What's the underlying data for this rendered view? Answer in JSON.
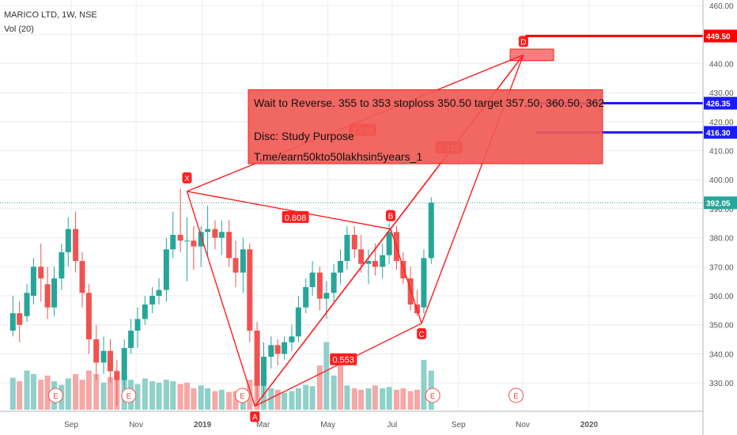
{
  "header": {
    "symbol": "MARICO LTD, 1W, NSE",
    "indicator": "Vol (20)"
  },
  "colors": {
    "up": "#26a69a",
    "down": "#ef5350",
    "vol_up": "#8fd0c9",
    "vol_down": "#f5a8a6",
    "pattern": "#ff1e1e",
    "text_box": "#f05a55",
    "level_red": "#ff0000",
    "level_blue": "#1a1aff",
    "last_price_dot": "#26a69a",
    "axis_text": "#555555",
    "grid": "#e9ecf2"
  },
  "annotation": {
    "line1": "Wait to Reverse. 355 to 353 stoploss 350.50 target 357.50, 360.50, 362",
    "line2": "Disc: Study Purpose",
    "line3": "T.me/earn50kto50lakhsin5years_1"
  },
  "chart_data": {
    "type": "candlestick",
    "title": "MARICO LTD, 1W, NSE",
    "y_axis": {
      "range": [
        321,
        463
      ],
      "ticks": [
        330,
        340,
        350,
        360,
        370,
        380,
        390,
        400,
        410,
        420,
        430,
        440,
        450,
        460
      ],
      "tick_labels": [
        "330.00",
        "340.00",
        "350.00",
        "360.00",
        "370.00",
        "380.00",
        "390.00",
        "400.00",
        "410.00",
        "420.00",
        "430.00",
        "440.00",
        "450.00",
        "460.00"
      ]
    },
    "x_axis": {
      "labels": [
        "Sep",
        "Nov",
        "2019",
        "Mar",
        "May",
        "Jul",
        "Sep",
        "Nov",
        "2020"
      ],
      "label_weeks": [
        0,
        8.8,
        17.8,
        26,
        34.8,
        43.5,
        52.5,
        61.2,
        70.2
      ]
    },
    "price_labels": [
      {
        "value": 449.5,
        "text": "449.50",
        "color": "#ff0000"
      },
      {
        "value": 426.35,
        "text": "426.35",
        "color": "#1a1aff"
      },
      {
        "value": 416.3,
        "text": "416.30",
        "color": "#1a1aff"
      },
      {
        "value": 392.05,
        "text": "392.05",
        "color": "#26a69a"
      }
    ],
    "candles": [
      {
        "w": -7.9,
        "o": 348,
        "h": 360,
        "l": 346,
        "c": 354
      },
      {
        "w": -7,
        "o": 354,
        "h": 358,
        "l": 344,
        "c": 350
      },
      {
        "w": -6,
        "o": 353,
        "h": 364,
        "l": 351,
        "c": 361
      },
      {
        "w": -5.1,
        "o": 360,
        "h": 373,
        "l": 357,
        "c": 370
      },
      {
        "w": -4.1,
        "o": 370,
        "h": 378,
        "l": 358,
        "c": 366
      },
      {
        "w": -3.2,
        "o": 364,
        "h": 370,
        "l": 352,
        "c": 356
      },
      {
        "w": -2.3,
        "o": 356,
        "h": 370,
        "l": 353,
        "c": 366
      },
      {
        "w": -1.3,
        "o": 366,
        "h": 378,
        "l": 362,
        "c": 375
      },
      {
        "w": -0.4,
        "o": 375,
        "h": 387,
        "l": 370,
        "c": 383
      },
      {
        "w": 0.6,
        "o": 383,
        "h": 389,
        "l": 368,
        "c": 372
      },
      {
        "w": 1.5,
        "o": 372,
        "h": 375,
        "l": 356,
        "c": 361
      },
      {
        "w": 2.4,
        "o": 361,
        "h": 364,
        "l": 340,
        "c": 345
      },
      {
        "w": 3.4,
        "o": 345,
        "h": 350,
        "l": 331,
        "c": 337
      },
      {
        "w": 4.4,
        "o": 337,
        "h": 346,
        "l": 333,
        "c": 341
      },
      {
        "w": 5.3,
        "o": 341,
        "h": 345,
        "l": 330,
        "c": 334
      },
      {
        "w": 6.2,
        "o": 334,
        "h": 338,
        "l": 322,
        "c": 331
      },
      {
        "w": 7.2,
        "o": 331,
        "h": 345,
        "l": 328,
        "c": 342
      },
      {
        "w": 8.1,
        "o": 342,
        "h": 352,
        "l": 340,
        "c": 348
      },
      {
        "w": 9,
        "o": 348,
        "h": 356,
        "l": 342,
        "c": 352
      },
      {
        "w": 10,
        "o": 352,
        "h": 360,
        "l": 350,
        "c": 357
      },
      {
        "w": 11,
        "o": 357,
        "h": 363,
        "l": 354,
        "c": 360
      },
      {
        "w": 11.9,
        "o": 360,
        "h": 366,
        "l": 357,
        "c": 362
      },
      {
        "w": 12.9,
        "o": 362,
        "h": 380,
        "l": 358,
        "c": 376
      },
      {
        "w": 13.8,
        "o": 376,
        "h": 389,
        "l": 373,
        "c": 381
      },
      {
        "w": 14.8,
        "o": 381,
        "h": 397,
        "l": 375,
        "c": 379
      },
      {
        "w": 15.7,
        "o": 379,
        "h": 387,
        "l": 365,
        "c": 379
      },
      {
        "w": 16.6,
        "o": 379,
        "h": 384,
        "l": 369,
        "c": 377
      },
      {
        "w": 17.6,
        "o": 377,
        "h": 384,
        "l": 370,
        "c": 382
      },
      {
        "w": 18.5,
        "o": 382,
        "h": 391,
        "l": 374,
        "c": 383
      },
      {
        "w": 19.5,
        "o": 383,
        "h": 386,
        "l": 376,
        "c": 380
      },
      {
        "w": 20.4,
        "o": 380,
        "h": 386,
        "l": 374,
        "c": 382
      },
      {
        "w": 21.4,
        "o": 382,
        "h": 386,
        "l": 370,
        "c": 373
      },
      {
        "w": 22.3,
        "o": 373,
        "h": 379,
        "l": 363,
        "c": 368
      },
      {
        "w": 23.3,
        "o": 368,
        "h": 380,
        "l": 361,
        "c": 376
      },
      {
        "w": 24.2,
        "o": 376,
        "h": 378,
        "l": 344,
        "c": 348
      },
      {
        "w": 25.2,
        "o": 348,
        "h": 351,
        "l": 324,
        "c": 329
      },
      {
        "w": 26.1,
        "o": 329,
        "h": 344,
        "l": 325,
        "c": 339
      },
      {
        "w": 27.1,
        "o": 339,
        "h": 346,
        "l": 335,
        "c": 343
      },
      {
        "w": 28,
        "o": 343,
        "h": 345,
        "l": 336,
        "c": 340
      },
      {
        "w": 28.9,
        "o": 340,
        "h": 346,
        "l": 338,
        "c": 344
      },
      {
        "w": 29.9,
        "o": 344,
        "h": 350,
        "l": 341,
        "c": 346
      },
      {
        "w": 30.8,
        "o": 346,
        "h": 360,
        "l": 344,
        "c": 356
      },
      {
        "w": 31.8,
        "o": 356,
        "h": 366,
        "l": 354,
        "c": 363
      },
      {
        "w": 32.7,
        "o": 363,
        "h": 372,
        "l": 360,
        "c": 368
      },
      {
        "w": 33.7,
        "o": 368,
        "h": 370,
        "l": 355,
        "c": 359
      },
      {
        "w": 34.6,
        "o": 359,
        "h": 365,
        "l": 352,
        "c": 361
      },
      {
        "w": 35.6,
        "o": 361,
        "h": 371,
        "l": 358,
        "c": 368
      },
      {
        "w": 36.5,
        "o": 368,
        "h": 376,
        "l": 364,
        "c": 372
      },
      {
        "w": 37.4,
        "o": 372,
        "h": 384,
        "l": 369,
        "c": 381
      },
      {
        "w": 38.4,
        "o": 381,
        "h": 384,
        "l": 373,
        "c": 376
      },
      {
        "w": 39.3,
        "o": 376,
        "h": 381,
        "l": 368,
        "c": 371
      },
      {
        "w": 40.3,
        "o": 371,
        "h": 376,
        "l": 364,
        "c": 372
      },
      {
        "w": 41.2,
        "o": 372,
        "h": 378,
        "l": 367,
        "c": 370
      },
      {
        "w": 42.2,
        "o": 370,
        "h": 378,
        "l": 366,
        "c": 374
      },
      {
        "w": 43.1,
        "o": 374,
        "h": 385,
        "l": 371,
        "c": 382
      },
      {
        "w": 44.1,
        "o": 382,
        "h": 384,
        "l": 369,
        "c": 372
      },
      {
        "w": 45,
        "o": 372,
        "h": 375,
        "l": 364,
        "c": 366
      },
      {
        "w": 46,
        "o": 366,
        "h": 370,
        "l": 355,
        "c": 357
      },
      {
        "w": 46.9,
        "o": 357,
        "h": 362,
        "l": 353,
        "c": 354
      },
      {
        "w": 47.8,
        "o": 356,
        "h": 376,
        "l": 354,
        "c": 373
      },
      {
        "w": 48.8,
        "o": 373,
        "h": 394,
        "l": 371,
        "c": 392.05
      }
    ],
    "volume_bars": [
      {
        "w": -7.9,
        "v": 0.45,
        "up": true
      },
      {
        "w": -7,
        "v": 0.4,
        "up": false
      },
      {
        "w": -6,
        "v": 0.55,
        "up": true
      },
      {
        "w": -5.1,
        "v": 0.5,
        "up": true
      },
      {
        "w": -4.1,
        "v": 0.42,
        "up": false
      },
      {
        "w": -3.2,
        "v": 0.48,
        "up": false
      },
      {
        "w": -2.3,
        "v": 0.4,
        "up": true
      },
      {
        "w": -1.3,
        "v": 0.35,
        "up": true
      },
      {
        "w": -0.4,
        "v": 0.44,
        "up": true
      },
      {
        "w": 0.6,
        "v": 0.5,
        "up": false
      },
      {
        "w": 1.5,
        "v": 0.42,
        "up": false
      },
      {
        "w": 2.4,
        "v": 0.55,
        "up": false
      },
      {
        "w": 3.4,
        "v": 0.5,
        "up": false
      },
      {
        "w": 4.4,
        "v": 0.38,
        "up": true
      },
      {
        "w": 5.3,
        "v": 0.46,
        "up": false
      },
      {
        "w": 6.2,
        "v": 0.55,
        "up": false
      },
      {
        "w": 7.2,
        "v": 0.5,
        "up": true
      },
      {
        "w": 8.1,
        "v": 0.42,
        "up": true
      },
      {
        "w": 9,
        "v": 0.36,
        "up": true
      },
      {
        "w": 10,
        "v": 0.44,
        "up": true
      },
      {
        "w": 11,
        "v": 0.4,
        "up": true
      },
      {
        "w": 11.9,
        "v": 0.38,
        "up": true
      },
      {
        "w": 12.9,
        "v": 0.42,
        "up": true
      },
      {
        "w": 13.8,
        "v": 0.4,
        "up": true
      },
      {
        "w": 14.8,
        "v": 0.36,
        "up": false
      },
      {
        "w": 15.7,
        "v": 0.38,
        "up": false
      },
      {
        "w": 16.6,
        "v": 0.3,
        "up": false
      },
      {
        "w": 17.6,
        "v": 0.34,
        "up": true
      },
      {
        "w": 18.5,
        "v": 0.3,
        "up": true
      },
      {
        "w": 19.5,
        "v": 0.26,
        "up": false
      },
      {
        "w": 20.4,
        "v": 0.28,
        "up": true
      },
      {
        "w": 21.4,
        "v": 0.25,
        "up": false
      },
      {
        "w": 22.3,
        "v": 0.26,
        "up": false
      },
      {
        "w": 23.3,
        "v": 0.3,
        "up": true
      },
      {
        "w": 24.2,
        "v": 0.42,
        "up": false
      },
      {
        "w": 25.2,
        "v": 0.52,
        "up": false
      },
      {
        "w": 26.1,
        "v": 0.4,
        "up": true
      },
      {
        "w": 27.1,
        "v": 0.3,
        "up": true
      },
      {
        "w": 28,
        "v": 0.28,
        "up": false
      },
      {
        "w": 28.9,
        "v": 0.24,
        "up": true
      },
      {
        "w": 29.9,
        "v": 0.26,
        "up": true
      },
      {
        "w": 30.8,
        "v": 0.3,
        "up": true
      },
      {
        "w": 31.8,
        "v": 0.35,
        "up": true
      },
      {
        "w": 32.7,
        "v": 0.33,
        "up": true
      },
      {
        "w": 33.7,
        "v": 0.62,
        "up": false
      },
      {
        "w": 34.6,
        "v": 0.95,
        "up": true
      },
      {
        "w": 35.6,
        "v": 0.48,
        "up": true
      },
      {
        "w": 36.5,
        "v": 0.65,
        "up": false
      },
      {
        "w": 37.4,
        "v": 0.34,
        "up": true
      },
      {
        "w": 38.4,
        "v": 0.3,
        "up": false
      },
      {
        "w": 39.3,
        "v": 0.28,
        "up": false
      },
      {
        "w": 40.3,
        "v": 0.3,
        "up": true
      },
      {
        "w": 41.2,
        "v": 0.34,
        "up": false
      },
      {
        "w": 42.2,
        "v": 0.3,
        "up": true
      },
      {
        "w": 43.1,
        "v": 0.32,
        "up": true
      },
      {
        "w": 44.1,
        "v": 0.28,
        "up": false
      },
      {
        "w": 45,
        "v": 0.3,
        "up": false
      },
      {
        "w": 46,
        "v": 0.26,
        "up": false
      },
      {
        "w": 46.9,
        "v": 0.28,
        "up": false
      },
      {
        "w": 47.8,
        "v": 0.7,
        "up": true
      },
      {
        "w": 48.8,
        "v": 0.55,
        "up": true
      }
    ],
    "earnings_markers": [
      {
        "w": -2.1,
        "label": "E"
      },
      {
        "w": 7.8,
        "label": "E"
      },
      {
        "w": 23.2,
        "label": "E"
      },
      {
        "w": 49,
        "label": "E"
      },
      {
        "w": 60.3,
        "label": "E"
      }
    ],
    "pattern_points": [
      {
        "name": "X",
        "w": 15.7,
        "y": 396
      },
      {
        "name": "A",
        "w": 24.9,
        "y": 322
      },
      {
        "name": "B",
        "w": 43.3,
        "y": 383
      },
      {
        "name": "C",
        "w": 47.5,
        "y": 350.5
      },
      {
        "name": "D",
        "w": 61.3,
        "y": 443
      }
    ],
    "pattern_ratios": [
      {
        "label": "0.808",
        "w": 30.4,
        "y": 387
      },
      {
        "label": "0.553",
        "w": 36.9,
        "y": 338
      },
      {
        "label": "1.618",
        "w": 39.5,
        "y": 417
      },
      {
        "label": "2.815",
        "w": 51.2,
        "y": 411
      }
    ],
    "levels": [
      {
        "value": 449.5,
        "from_w": 61.6,
        "color": "#ff0000"
      },
      {
        "value": 426.35,
        "from_w": 63.0,
        "color": "#1a1aff"
      },
      {
        "value": 416.3,
        "from_w": 63.0,
        "color": "#1a1aff"
      }
    ],
    "target_box": {
      "from_w": 59.5,
      "to_w": 65.4,
      "low": 441,
      "high": 445
    },
    "last_price": 392.05
  }
}
